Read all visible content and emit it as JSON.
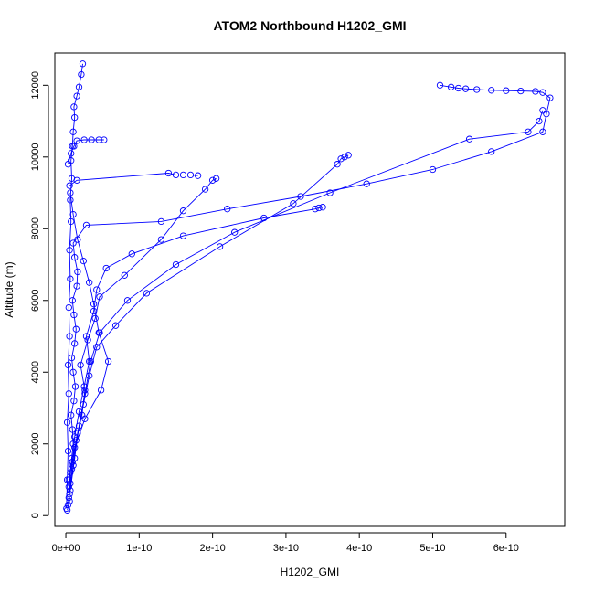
{
  "chart_data": {
    "type": "line",
    "title": "ATOM2 Northbound H1202_GMI",
    "xlabel": "H1202_GMI",
    "ylabel": "Altitude (m)",
    "xlim": [
      -1.5e-11,
      6.8e-10
    ],
    "ylim": [
      -300,
      12900
    ],
    "x_ticks": [
      0,
      1e-10,
      2e-10,
      3e-10,
      4e-10,
      5e-10,
      6e-10
    ],
    "x_tick_labels": [
      "0e+00",
      "1e-10",
      "2e-10",
      "3e-10",
      "4e-10",
      "5e-10",
      "6e-10"
    ],
    "y_ticks": [
      0,
      2000,
      4000,
      6000,
      8000,
      10000,
      12000
    ],
    "y_tick_labels": [
      "0",
      "2000",
      "4000",
      "6000",
      "8000",
      "10000",
      "12000"
    ],
    "color": "#0000ff",
    "marker": "open-circle",
    "series": [
      {
        "x": [
          2e-12,
          5e-12,
          4e-12,
          6e-12,
          8e-12,
          1e-11,
          9e-12,
          7e-12,
          1.1e-11,
          1.3e-11,
          1e-11,
          8e-12,
          1.2e-11,
          1.4e-11,
          1.1e-11,
          9e-12,
          1.5e-11,
          1.6e-11,
          1.2e-11,
          1e-11,
          2.8e-11,
          1.3e-10,
          2.2e-10,
          3.2e-10,
          4.1e-10,
          5e-10,
          5.8e-10,
          6.5e-10,
          6.55e-10,
          6.6e-10,
          6.5e-10,
          6.4e-10,
          6.2e-10,
          6e-10,
          5.8e-10,
          5.6e-10,
          5.45e-10,
          5.35e-10,
          5.25e-10,
          5.1e-10
        ],
        "y": [
          150,
          400,
          800,
          1200,
          1600,
          2000,
          2400,
          2800,
          3200,
          3600,
          4000,
          4400,
          4800,
          5200,
          5600,
          6000,
          6400,
          6800,
          7200,
          7600,
          8100,
          8200,
          8550,
          8900,
          9250,
          9650,
          10150,
          10700,
          11200,
          11650,
          11800,
          11830,
          11840,
          11850,
          11860,
          11880,
          11900,
          11920,
          11950,
          12000
        ]
      },
      {
        "x": [
          3e-12,
          6e-12,
          9e-12,
          1.2e-11,
          1.8e-11,
          2.5e-11,
          3.2e-11,
          2.8e-11,
          3.8e-11,
          4.2e-11,
          5.5e-11,
          9e-11,
          1.6e-10,
          2.7e-10,
          3.4e-10,
          3.45e-10,
          3.5e-10
        ],
        "y": [
          300,
          900,
          1500,
          2200,
          2900,
          3600,
          4300,
          5000,
          5700,
          6300,
          6900,
          7300,
          7800,
          8300,
          8550,
          8580,
          8600
        ]
      },
      {
        "x": [
          4e-12,
          8e-12,
          1.4e-11,
          2.2e-11,
          2.6e-11,
          2e-11,
          3e-11,
          4e-11,
          4.6e-11,
          8e-11,
          1.3e-10,
          1.6e-10,
          1.9e-10,
          2e-10,
          2.05e-10
        ],
        "y": [
          500,
          1300,
          2100,
          2800,
          3500,
          4200,
          4900,
          5500,
          6100,
          6700,
          7700,
          8500,
          9100,
          9350,
          9400
        ]
      },
      {
        "x": [
          5e-12,
          1e-11,
          1.6e-11,
          2.4e-11,
          3.2e-11,
          4.2e-11,
          6.8e-11,
          1.1e-10,
          2.1e-10,
          3.1e-10,
          3.7e-10,
          3.75e-10,
          3.8e-10,
          3.85e-10
        ],
        "y": [
          600,
          1400,
          2300,
          3100,
          3900,
          4700,
          5300,
          6200,
          7500,
          8700,
          9800,
          9950,
          10000,
          10050
        ]
      },
      {
        "x": [
          6e-12,
          1.2e-11,
          1.8e-11,
          2.6e-11,
          3.4e-11,
          4.6e-11,
          8.4e-11,
          1.5e-10,
          2.3e-10,
          3.6e-10,
          5.5e-10,
          6.3e-10,
          6.45e-10,
          6.5e-10
        ],
        "y": [
          700,
          1600,
          2500,
          3400,
          4300,
          5100,
          6000,
          7000,
          7900,
          9000,
          10500,
          10700,
          11000,
          11300
        ]
      },
      {
        "x": [
          1e-12,
          2e-12,
          3e-12,
          2e-12,
          4e-12,
          3e-12,
          5e-12,
          4e-12,
          6e-12,
          5e-12,
          7e-12,
          6e-12,
          8e-12,
          7e-12,
          9e-12,
          1e-11,
          1.2e-11,
          1.1e-11,
          1.5e-11,
          1.8e-11,
          2.1e-11,
          2.3e-11
        ],
        "y": [
          200,
          1000,
          1800,
          2600,
          3400,
          4200,
          5000,
          5800,
          6600,
          7400,
          8200,
          8800,
          9400,
          9900,
          10300,
          10700,
          11100,
          11400,
          11700,
          11950,
          12300,
          12600
        ]
      },
      {
        "x": [
          3e-12,
          7e-12,
          1.1e-11,
          1.5e-11,
          2.5e-11,
          3.5e-11,
          4.5e-11,
          5.2e-11
        ],
        "y": [
          9800,
          10100,
          10300,
          10450,
          10480,
          10480,
          10480,
          10480
        ]
      },
      {
        "x": [
          5e-12,
          1.5e-11,
          1.4e-10,
          1.5e-10,
          1.6e-10,
          1.7e-10,
          1.8e-10
        ],
        "y": [
          9200,
          9350,
          9550,
          9500,
          9500,
          9500,
          9480
        ]
      },
      {
        "x": [
          4e-12,
          1.2e-11,
          2.6e-11,
          4.8e-11,
          5.8e-11,
          4.5e-11,
          3.8e-11,
          3.2e-11,
          2.4e-11,
          1.6e-11,
          1e-11,
          6e-12
        ],
        "y": [
          1000,
          1900,
          2700,
          3500,
          4300,
          5100,
          5900,
          6500,
          7100,
          7700,
          8400,
          9000
        ]
      }
    ]
  }
}
